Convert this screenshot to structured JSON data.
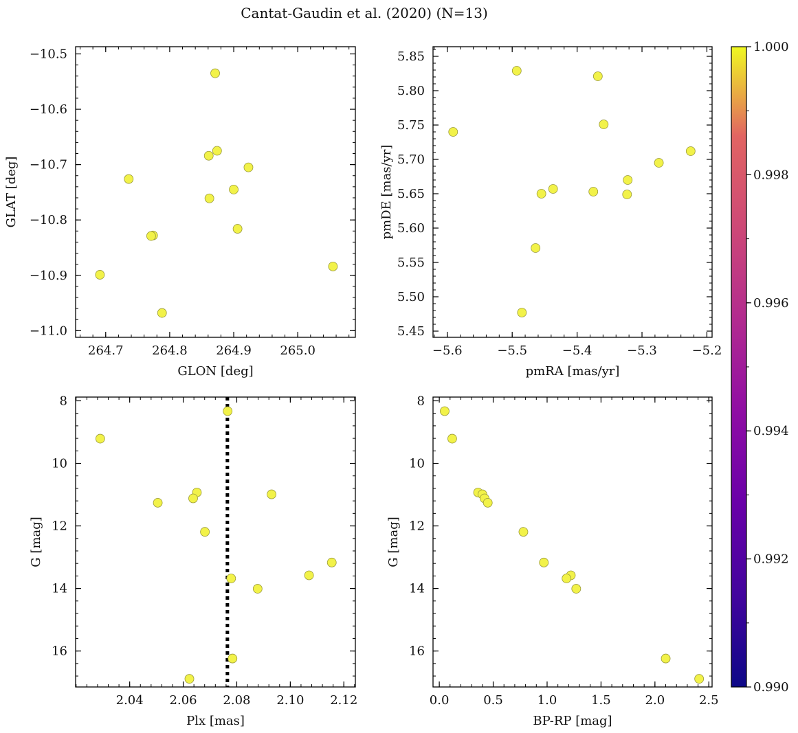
{
  "figure": {
    "title": "Cantat-Gaudin et al. (2020) (N=13)",
    "marker_color": "#f2f249",
    "marker_edge": "#9a9a3a"
  },
  "chart_data": [
    {
      "type": "scatter",
      "id": "glon-glat",
      "xlabel": "GLON [deg]",
      "ylabel": "GLAT [deg]",
      "xlim": [
        264.653,
        265.09
      ],
      "ylim": [
        -11.012,
        -10.487
      ],
      "y_inverted": false,
      "xticks": [
        264.7,
        264.8,
        264.9,
        265.0
      ],
      "xtick_labels": [
        "264.7",
        "264.8",
        "264.9",
        "265.0"
      ],
      "yticks": [
        -10.5,
        -10.6,
        -10.7,
        -10.8,
        -10.9,
        -11.0
      ],
      "ytick_labels": [
        "−10.5",
        "−10.6",
        "−10.7",
        "−10.8",
        "−10.9",
        "−11.0"
      ],
      "points": [
        {
          "x": 264.871,
          "y": -10.535
        },
        {
          "x": 264.874,
          "y": -10.675
        },
        {
          "x": 264.861,
          "y": -10.684
        },
        {
          "x": 264.923,
          "y": -10.705
        },
        {
          "x": 264.736,
          "y": -10.726
        },
        {
          "x": 264.9,
          "y": -10.745
        },
        {
          "x": 264.862,
          "y": -10.761
        },
        {
          "x": 264.906,
          "y": -10.816
        },
        {
          "x": 264.774,
          "y": -10.828
        },
        {
          "x": 264.771,
          "y": -10.829
        },
        {
          "x": 265.055,
          "y": -10.884
        },
        {
          "x": 264.691,
          "y": -10.899
        },
        {
          "x": 264.788,
          "y": -10.968
        }
      ]
    },
    {
      "type": "scatter",
      "id": "pmra-pmde",
      "xlabel": "pmRA [mas/yr]",
      "ylabel": "pmDE [mas/yr]",
      "xlim": [
        -5.622,
        -5.192
      ],
      "ylim": [
        5.441,
        5.864
      ],
      "y_inverted": false,
      "xticks": [
        -5.6,
        -5.5,
        -5.4,
        -5.3,
        -5.2
      ],
      "xtick_labels": [
        "−5.6",
        "−5.5",
        "−5.4",
        "−5.3",
        "−5.2"
      ],
      "yticks": [
        5.45,
        5.5,
        5.55,
        5.6,
        5.65,
        5.7,
        5.75,
        5.8,
        5.85
      ],
      "ytick_labels": [
        "5.45",
        "5.50",
        "5.55",
        "5.60",
        "5.65",
        "5.70",
        "5.75",
        "5.80",
        "5.85"
      ],
      "points": [
        {
          "x": -5.493,
          "y": 5.829
        },
        {
          "x": -5.368,
          "y": 5.821
        },
        {
          "x": -5.359,
          "y": 5.751
        },
        {
          "x": -5.591,
          "y": 5.74
        },
        {
          "x": -5.225,
          "y": 5.712
        },
        {
          "x": -5.274,
          "y": 5.695
        },
        {
          "x": -5.322,
          "y": 5.67
        },
        {
          "x": -5.437,
          "y": 5.657
        },
        {
          "x": -5.375,
          "y": 5.653
        },
        {
          "x": -5.455,
          "y": 5.65
        },
        {
          "x": -5.323,
          "y": 5.649
        },
        {
          "x": -5.464,
          "y": 5.571
        },
        {
          "x": -5.485,
          "y": 5.477
        }
      ]
    },
    {
      "type": "scatter",
      "id": "plx-g",
      "xlabel": "Plx [mas]",
      "ylabel": "G [mag]",
      "xlim": [
        2.0198,
        2.1243
      ],
      "ylim": [
        7.88,
        17.15
      ],
      "y_inverted": true,
      "xticks": [
        2.04,
        2.06,
        2.08,
        2.1,
        2.12
      ],
      "xtick_labels": [
        "2.04",
        "2.06",
        "2.08",
        "2.10",
        "2.12"
      ],
      "yticks": [
        8,
        10,
        12,
        14,
        16
      ],
      "ytick_labels": [
        "8",
        "10",
        "12",
        "14",
        "16"
      ],
      "vline": 2.0765,
      "points": [
        {
          "x": 2.0766,
          "y": 8.33
        },
        {
          "x": 2.029,
          "y": 9.21
        },
        {
          "x": 2.0651,
          "y": 10.93
        },
        {
          "x": 2.093,
          "y": 10.99
        },
        {
          "x": 2.0637,
          "y": 11.12
        },
        {
          "x": 2.0505,
          "y": 11.26
        },
        {
          "x": 2.0681,
          "y": 12.19
        },
        {
          "x": 2.1155,
          "y": 13.17
        },
        {
          "x": 2.107,
          "y": 13.58
        },
        {
          "x": 2.0779,
          "y": 13.68
        },
        {
          "x": 2.0878,
          "y": 14.01
        },
        {
          "x": 2.0784,
          "y": 16.24
        },
        {
          "x": 2.0623,
          "y": 16.89
        }
      ]
    },
    {
      "type": "scatter",
      "id": "bprp-g",
      "xlabel": "BP-RP [mag]",
      "ylabel": "G [mag]",
      "xlim": [
        -0.058,
        2.53
      ],
      "ylim": [
        7.88,
        17.15
      ],
      "y_inverted": true,
      "xticks": [
        0.0,
        0.5,
        1.0,
        1.5,
        2.0,
        2.5
      ],
      "xtick_labels": [
        "0.0",
        "0.5",
        "1.0",
        "1.5",
        "2.0",
        "2.5"
      ],
      "yticks": [
        8,
        10,
        12,
        14,
        16
      ],
      "ytick_labels": [
        "8",
        "10",
        "12",
        "14",
        "16"
      ],
      "points": [
        {
          "x": 0.05,
          "y": 8.33
        },
        {
          "x": 0.12,
          "y": 9.21
        },
        {
          "x": 0.36,
          "y": 10.93
        },
        {
          "x": 0.4,
          "y": 10.99
        },
        {
          "x": 0.42,
          "y": 11.12
        },
        {
          "x": 0.45,
          "y": 11.26
        },
        {
          "x": 0.78,
          "y": 12.19
        },
        {
          "x": 0.97,
          "y": 13.17
        },
        {
          "x": 1.22,
          "y": 13.58
        },
        {
          "x": 1.18,
          "y": 13.68
        },
        {
          "x": 1.27,
          "y": 14.01
        },
        {
          "x": 2.1,
          "y": 16.24
        },
        {
          "x": 2.41,
          "y": 16.89
        }
      ]
    }
  ],
  "colorbar": {
    "min": 0.99,
    "max": 1.0,
    "ticks": [
      0.99,
      0.992,
      0.994,
      0.996,
      0.998,
      1.0
    ],
    "tick_labels": [
      "0.990",
      "0.992",
      "0.994",
      "0.996",
      "0.998",
      "1.000"
    ],
    "colormap": "plasma"
  }
}
